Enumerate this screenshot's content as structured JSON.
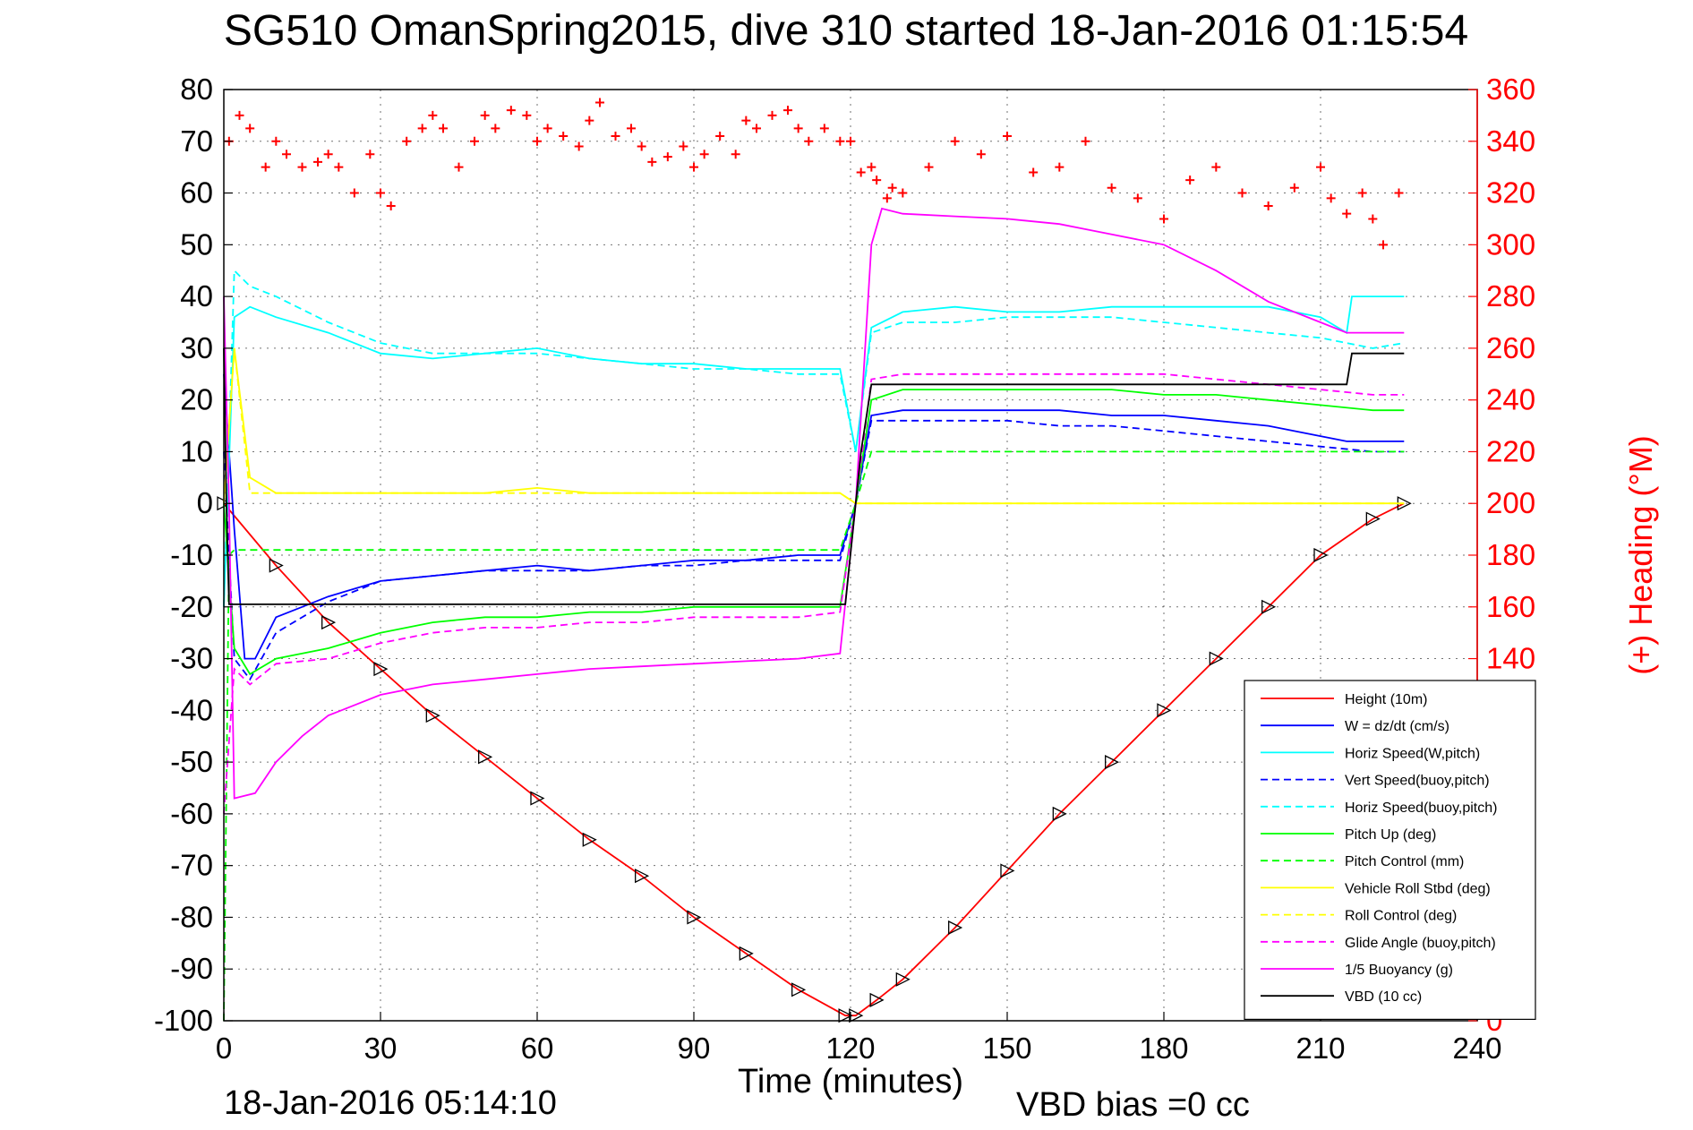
{
  "chart_data": {
    "type": "line",
    "title": "SG510 OmanSpring2015, dive 310 started 18-Jan-2016 01:15:54",
    "xlabel": "Time (minutes)",
    "ylabel_right": "(+) Heading (°M)",
    "xlim": [
      0,
      240
    ],
    "ylim": [
      -100,
      80
    ],
    "ylim_right": [
      0,
      360
    ],
    "xticks": [
      "0",
      "30",
      "60",
      "90",
      "120",
      "150",
      "180",
      "210",
      "240"
    ],
    "yticks": [
      "80",
      "70",
      "60",
      "50",
      "40",
      "30",
      "20",
      "10",
      "0",
      "-10",
      "-20",
      "-30",
      "-40",
      "-50",
      "-60",
      "-70",
      "-80",
      "-90",
      "-100"
    ],
    "yticks_right": [
      "360",
      "340",
      "320",
      "300",
      "280",
      "260",
      "240",
      "220",
      "200",
      "180",
      "160",
      "140",
      "120",
      "100",
      "80",
      "60",
      "40",
      "20",
      "0"
    ],
    "grid": true,
    "legend_position": "bottom-right",
    "footer_left": "18-Jan-2016 05:14:10",
    "footer_right": "VBD bias =0 cc",
    "colors": {
      "red": "#ff0000",
      "blue": "#0000ff",
      "cyan": "#00ffff",
      "green": "#00ff00",
      "yellow": "#ffff00",
      "magenta": "#ff00ff",
      "black": "#000000"
    },
    "series": [
      {
        "name": "Height (10m)",
        "color": "#ff0000",
        "style": "solid",
        "x": [
          0,
          10,
          20,
          30,
          40,
          50,
          60,
          70,
          80,
          90,
          100,
          110,
          119,
          121,
          125,
          130,
          140,
          150,
          160,
          170,
          180,
          190,
          200,
          210,
          220,
          226
        ],
        "y": [
          0,
          -12,
          -23,
          -32,
          -41,
          -49,
          -57,
          -65,
          -72,
          -80,
          -87,
          -94,
          -99,
          -99,
          -96,
          -92,
          -82,
          -71,
          -60,
          -50,
          -40,
          -30,
          -20,
          -10,
          -3,
          0
        ]
      },
      {
        "name": "W = dz/dt (cm/s)",
        "color": "#0000ff",
        "style": "solid",
        "x": [
          0,
          2,
          4,
          6,
          8,
          10,
          15,
          20,
          30,
          40,
          50,
          60,
          70,
          80,
          90,
          100,
          110,
          118,
          121,
          124,
          130,
          140,
          150,
          160,
          170,
          180,
          190,
          200,
          210,
          215,
          220,
          226
        ],
        "y": [
          25,
          -5,
          -30,
          -30,
          -26,
          -22,
          -20,
          -18,
          -15,
          -14,
          -13,
          -12,
          -13,
          -12,
          -11,
          -11,
          -10,
          -10,
          0,
          17,
          18,
          18,
          18,
          18,
          17,
          17,
          16,
          15,
          13,
          12,
          12,
          12
        ]
      },
      {
        "name": "Horiz Speed(W,pitch)",
        "color": "#00ffff",
        "style": "solid",
        "x": [
          0,
          2,
          5,
          10,
          20,
          30,
          40,
          50,
          60,
          70,
          80,
          90,
          100,
          110,
          118,
          121,
          124,
          130,
          140,
          150,
          160,
          170,
          180,
          190,
          200,
          210,
          215,
          216,
          220,
          226
        ],
        "y": [
          -20,
          36,
          38,
          36,
          33,
          29,
          28,
          29,
          30,
          28,
          27,
          27,
          26,
          26,
          26,
          10,
          34,
          37,
          38,
          37,
          37,
          38,
          38,
          38,
          38,
          36,
          33,
          40,
          40,
          40
        ]
      },
      {
        "name": "Vert Speed(buoy,pitch)",
        "color": "#0000ff",
        "style": "dashed",
        "x": [
          0,
          2,
          5,
          10,
          20,
          30,
          40,
          50,
          60,
          70,
          80,
          90,
          100,
          110,
          118,
          121,
          124,
          130,
          140,
          150,
          160,
          170,
          180,
          190,
          200,
          210,
          220,
          226
        ],
        "y": [
          10,
          -30,
          -34,
          -25,
          -19,
          -15,
          -14,
          -13,
          -13,
          -13,
          -12,
          -12,
          -11,
          -11,
          -11,
          0,
          16,
          16,
          16,
          16,
          15,
          15,
          14,
          13,
          12,
          11,
          10,
          10
        ]
      },
      {
        "name": "Horiz Speed(buoy,pitch)",
        "color": "#00ffff",
        "style": "dashed",
        "x": [
          0,
          2,
          5,
          10,
          20,
          30,
          40,
          50,
          60,
          70,
          80,
          90,
          100,
          110,
          118,
          121,
          124,
          130,
          140,
          150,
          160,
          170,
          180,
          190,
          200,
          210,
          220,
          226
        ],
        "y": [
          -20,
          45,
          42,
          40,
          35,
          31,
          29,
          29,
          29,
          28,
          27,
          26,
          26,
          25,
          25,
          10,
          33,
          35,
          35,
          36,
          36,
          36,
          35,
          34,
          33,
          32,
          30,
          31
        ]
      },
      {
        "name": "Pitch Up (deg)",
        "color": "#00ff00",
        "style": "solid",
        "x": [
          0,
          2,
          5,
          10,
          20,
          30,
          40,
          50,
          60,
          70,
          80,
          90,
          100,
          110,
          118,
          121,
          124,
          130,
          140,
          150,
          160,
          170,
          180,
          190,
          200,
          210,
          220,
          226
        ],
        "y": [
          0,
          -28,
          -33,
          -30,
          -28,
          -25,
          -23,
          -22,
          -22,
          -21,
          -21,
          -20,
          -20,
          -20,
          -20,
          0,
          20,
          22,
          22,
          22,
          22,
          22,
          21,
          21,
          20,
          19,
          18,
          18
        ]
      },
      {
        "name": "Pitch Control (mm)",
        "color": "#00ff00",
        "style": "dashed",
        "x": [
          0,
          1,
          2,
          5,
          10,
          118,
          121,
          124,
          226
        ],
        "y": [
          -100,
          -10,
          -9,
          -9,
          -9,
          -9,
          0,
          10,
          10
        ]
      },
      {
        "name": "Vehicle Roll Stbd (deg)",
        "color": "#ffff00",
        "style": "solid",
        "x": [
          0,
          2,
          5,
          10,
          20,
          30,
          40,
          50,
          60,
          70,
          80,
          90,
          100,
          110,
          118,
          121,
          124,
          130,
          140,
          150,
          160,
          170,
          180,
          190,
          200,
          210,
          220,
          226
        ],
        "y": [
          0,
          30,
          5,
          2,
          2,
          2,
          2,
          2,
          3,
          2,
          2,
          2,
          2,
          2,
          2,
          0,
          0,
          0,
          0,
          0,
          0,
          0,
          0,
          0,
          0,
          0,
          0,
          0
        ]
      },
      {
        "name": "Roll Control (deg)",
        "color": "#ffff00",
        "style": "dashed",
        "x": [
          0,
          2,
          5,
          10,
          118,
          121,
          124,
          226
        ],
        "y": [
          0,
          30,
          2,
          2,
          2,
          0,
          0,
          0
        ]
      },
      {
        "name": "Glide Angle (buoy,pitch)",
        "color": "#ff00ff",
        "style": "dashed",
        "x": [
          0,
          2,
          5,
          10,
          20,
          30,
          40,
          50,
          60,
          70,
          80,
          90,
          100,
          110,
          118,
          121,
          124,
          130,
          140,
          150,
          160,
          170,
          180,
          190,
          200,
          210,
          220,
          226
        ],
        "y": [
          -60,
          -32,
          -35,
          -31,
          -30,
          -27,
          -25,
          -24,
          -24,
          -23,
          -23,
          -22,
          -22,
          -22,
          -21,
          0,
          24,
          25,
          25,
          25,
          25,
          25,
          25,
          24,
          23,
          22,
          21,
          21
        ]
      },
      {
        "name": "1/5 Buoyancy (g)",
        "color": "#ff00ff",
        "style": "solid",
        "x": [
          0,
          1,
          2,
          6,
          10,
          15,
          20,
          30,
          40,
          50,
          60,
          70,
          80,
          90,
          100,
          110,
          118,
          121,
          124,
          126,
          130,
          140,
          150,
          160,
          170,
          180,
          190,
          200,
          210,
          215,
          220,
          226
        ],
        "y": [
          40,
          0,
          -57,
          -56,
          -50,
          -45,
          -41,
          -37,
          -35,
          -34,
          -33,
          -32,
          -31.5,
          -31,
          -30.5,
          -30,
          -29,
          0,
          50,
          57,
          56,
          55.5,
          55,
          54,
          52,
          50,
          45,
          39,
          35,
          33,
          33,
          33
        ]
      },
      {
        "name": "VBD (10 cc)",
        "color": "#000000",
        "style": "solid",
        "x": [
          0,
          0.5,
          1,
          2,
          118,
          119,
          122,
          124,
          215,
          216,
          226
        ],
        "y": [
          30,
          0,
          -19.5,
          -19.5,
          -19.5,
          -19.5,
          10,
          23,
          23,
          29,
          29
        ]
      },
      {
        "name": "Heading",
        "color": "#ff0000",
        "style": "markers",
        "axis": "right",
        "x": [
          1,
          3,
          5,
          8,
          10,
          12,
          15,
          18,
          20,
          22,
          25,
          28,
          30,
          32,
          35,
          38,
          40,
          42,
          45,
          48,
          50,
          52,
          55,
          58,
          60,
          62,
          65,
          68,
          70,
          72,
          75,
          78,
          80,
          82,
          85,
          88,
          90,
          92,
          95,
          98,
          100,
          102,
          105,
          108,
          110,
          112,
          115,
          118,
          120,
          122,
          124,
          125,
          127,
          128,
          130,
          135,
          140,
          145,
          150,
          155,
          160,
          165,
          170,
          175,
          180,
          185,
          190,
          195,
          200,
          205,
          210,
          212,
          215,
          218,
          220,
          222,
          225
        ],
        "y": [
          340,
          350,
          345,
          330,
          340,
          335,
          330,
          332,
          335,
          330,
          320,
          335,
          320,
          315,
          340,
          345,
          350,
          345,
          330,
          340,
          350,
          345,
          352,
          350,
          340,
          345,
          342,
          338,
          348,
          355,
          342,
          345,
          338,
          332,
          334,
          338,
          330,
          335,
          342,
          335,
          348,
          345,
          350,
          352,
          345,
          340,
          345,
          340,
          340,
          328,
          330,
          325,
          318,
          322,
          320,
          330,
          340,
          335,
          342,
          328,
          330,
          340,
          322,
          318,
          310,
          325,
          330,
          320,
          315,
          322,
          330,
          318,
          312,
          320,
          310,
          300,
          320
        ]
      }
    ]
  }
}
